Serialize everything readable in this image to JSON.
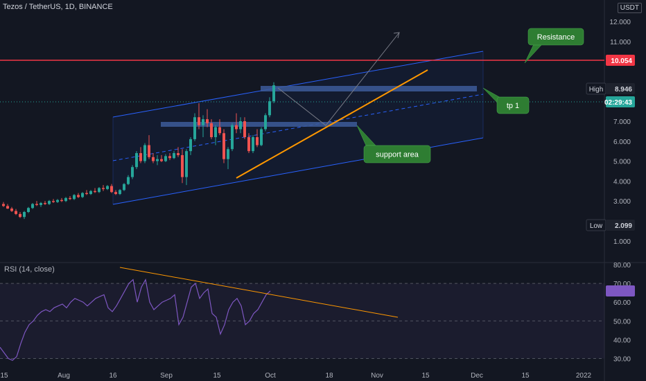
{
  "header": {
    "title": "Tezos / TetherUS, 1D, BINANCE",
    "currency": "USDT"
  },
  "price_axis": {
    "ticks": [
      "12.000",
      "11.000",
      "10.000",
      "8.000",
      "7.000",
      "6.000",
      "5.000",
      "4.000",
      "3.000",
      "1.000"
    ]
  },
  "rsi_axis": {
    "ticks": [
      "80.00",
      "70.00",
      "60.00",
      "50.00",
      "40.00",
      "30.00"
    ]
  },
  "time_axis": {
    "ticks": [
      "15",
      "Aug",
      "16",
      "Sep",
      "15",
      "Oct",
      "18",
      "Nov",
      "15",
      "Dec",
      "15",
      "2022"
    ]
  },
  "markers": {
    "resistance_price": "10.054",
    "high_label": "High",
    "high_value": "8.946",
    "countdown": "02:29:43",
    "low_label": "Low",
    "low_value": "2.099"
  },
  "annotations": {
    "resistance": "Resistance",
    "tp1": "tp 1",
    "support": "support area"
  },
  "rsi": {
    "label": "RSI (14, close)"
  },
  "colors": {
    "background": "#131722",
    "up": "#26a69a",
    "down": "#ef5350",
    "resistance": "#f23645",
    "channel": "#2962ff",
    "trend": "#ff9800",
    "callout": "#2e7d32",
    "rsi": "#7e57c2",
    "zone": "#3d5a99"
  },
  "chart_data": {
    "type": "candlestick",
    "title": "Tezos / TetherUS, 1D, BINANCE",
    "y_unit": "USDT",
    "price_range": [
      0.6,
      12.8
    ],
    "resistance_level": 10.054,
    "high": 8.946,
    "low": 2.099,
    "candles": [
      [
        2.85,
        2.95,
        2.7,
        2.75
      ],
      [
        2.75,
        2.85,
        2.6,
        2.62
      ],
      [
        2.62,
        2.7,
        2.45,
        2.5
      ],
      [
        2.5,
        2.6,
        2.3,
        2.35
      ],
      [
        2.35,
        2.45,
        2.15,
        2.2
      ],
      [
        2.2,
        2.5,
        2.1,
        2.45
      ],
      [
        2.45,
        2.7,
        2.4,
        2.65
      ],
      [
        2.65,
        2.9,
        2.6,
        2.85
      ],
      [
        2.85,
        3.0,
        2.75,
        2.8
      ],
      [
        2.8,
        2.95,
        2.7,
        2.9
      ],
      [
        2.9,
        3.0,
        2.8,
        2.85
      ],
      [
        2.85,
        3.05,
        2.8,
        3.0
      ],
      [
        3.0,
        3.1,
        2.9,
        2.95
      ],
      [
        2.95,
        3.1,
        2.9,
        3.05
      ],
      [
        3.05,
        3.15,
        2.95,
        3.0
      ],
      [
        3.0,
        3.2,
        2.95,
        3.15
      ],
      [
        3.15,
        3.25,
        3.05,
        3.1
      ],
      [
        3.1,
        3.35,
        3.05,
        3.3
      ],
      [
        3.3,
        3.4,
        3.15,
        3.2
      ],
      [
        3.2,
        3.45,
        3.15,
        3.4
      ],
      [
        3.4,
        3.55,
        3.3,
        3.35
      ],
      [
        3.35,
        3.55,
        3.3,
        3.5
      ],
      [
        3.5,
        3.65,
        3.4,
        3.45
      ],
      [
        3.45,
        3.7,
        3.4,
        3.65
      ],
      [
        3.65,
        3.8,
        3.5,
        3.6
      ],
      [
        3.6,
        3.8,
        3.55,
        3.75
      ],
      [
        3.75,
        3.85,
        3.4,
        3.45
      ],
      [
        3.45,
        3.55,
        3.3,
        3.35
      ],
      [
        3.35,
        3.6,
        3.3,
        3.55
      ],
      [
        3.55,
        3.9,
        3.5,
        3.85
      ],
      [
        3.85,
        4.3,
        3.8,
        4.2
      ],
      [
        4.2,
        4.8,
        4.1,
        4.7
      ],
      [
        4.7,
        5.5,
        4.6,
        5.4
      ],
      [
        5.4,
        5.7,
        4.9,
        5.0
      ],
      [
        5.0,
        5.9,
        4.9,
        5.8
      ],
      [
        5.8,
        6.3,
        5.1,
        5.2
      ],
      [
        5.2,
        5.4,
        4.9,
        5.0
      ],
      [
        5.0,
        5.3,
        4.8,
        5.1
      ],
      [
        5.1,
        5.3,
        4.95,
        5.0
      ],
      [
        5.0,
        5.35,
        4.95,
        5.25
      ],
      [
        5.25,
        5.4,
        5.05,
        5.15
      ],
      [
        5.15,
        5.5,
        5.1,
        5.4
      ],
      [
        5.4,
        5.7,
        5.2,
        5.3
      ],
      [
        5.3,
        5.6,
        3.9,
        4.2
      ],
      [
        4.2,
        5.6,
        3.8,
        5.5
      ],
      [
        5.5,
        6.2,
        5.3,
        6.1
      ],
      [
        6.1,
        7.4,
        6.0,
        7.2
      ],
      [
        7.2,
        7.9,
        6.6,
        6.8
      ],
      [
        6.8,
        7.3,
        6.2,
        7.1
      ],
      [
        7.1,
        7.6,
        6.7,
        6.9
      ],
      [
        6.9,
        7.1,
        6.1,
        6.2
      ],
      [
        6.2,
        6.8,
        5.8,
        6.7
      ],
      [
        6.7,
        7.1,
        6.3,
        6.4
      ],
      [
        6.4,
        6.6,
        4.9,
        5.1
      ],
      [
        5.1,
        5.7,
        4.6,
        5.6
      ],
      [
        5.6,
        6.9,
        5.5,
        6.8
      ],
      [
        6.8,
        7.4,
        6.4,
        6.6
      ],
      [
        6.6,
        7.2,
        6.4,
        7.0
      ],
      [
        7.0,
        7.2,
        6.1,
        6.2
      ],
      [
        6.2,
        6.4,
        5.4,
        5.5
      ],
      [
        5.5,
        6.3,
        5.4,
        6.2
      ],
      [
        6.2,
        6.6,
        5.7,
        5.8
      ],
      [
        5.8,
        6.7,
        5.75,
        6.6
      ],
      [
        6.6,
        7.4,
        6.5,
        7.3
      ],
      [
        7.3,
        8.2,
        7.2,
        8.0
      ],
      [
        8.0,
        8.95,
        7.9,
        8.8
      ]
    ],
    "rsi": [
      36,
      33,
      30,
      29,
      31,
      38,
      44,
      48,
      50,
      53,
      55,
      56,
      55,
      57,
      58,
      59,
      57,
      60,
      62,
      61,
      60,
      58,
      60,
      62,
      63,
      64,
      57,
      55,
      58,
      62,
      66,
      70,
      72,
      60,
      68,
      72,
      60,
      56,
      58,
      60,
      61,
      62,
      64,
      48,
      52,
      60,
      68,
      70,
      62,
      65,
      67,
      54,
      52,
      43,
      48,
      56,
      60,
      62,
      58,
      48,
      50,
      54,
      56,
      60,
      64,
      66
    ]
  }
}
